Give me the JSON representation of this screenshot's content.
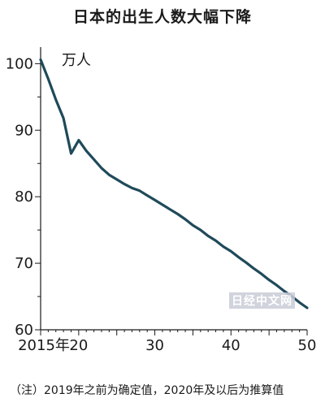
{
  "title": "日本的出生人数大幅下降",
  "footnote": "（注）2019年之前为确定值，2020年及以后为推算值",
  "watermark": "日经中文网",
  "chart_data": {
    "type": "line",
    "title": "日本的出生人数大幅下降",
    "ylabel": "万人",
    "xlabel": "",
    "xlim": [
      2015,
      2050
    ],
    "ylim": [
      60,
      102
    ],
    "x_tick_labels": [
      {
        "x": 2015,
        "label": "2015年"
      },
      {
        "x": 2020,
        "label": "20"
      },
      {
        "x": 2030,
        "label": "30"
      },
      {
        "x": 2040,
        "label": "40"
      },
      {
        "x": 2050,
        "label": "50"
      }
    ],
    "y_ticks": [
      60,
      70,
      80,
      90,
      100
    ],
    "grid": false,
    "line_color": "#1f4a5a",
    "series": [
      {
        "x": [
          2015,
          2016,
          2017,
          2018,
          2019,
          2020,
          2021,
          2022,
          2023,
          2024,
          2025,
          2026,
          2027,
          2028,
          2029,
          2030,
          2031,
          2032,
          2033,
          2034,
          2035,
          2036,
          2037,
          2038,
          2039,
          2040,
          2041,
          2042,
          2043,
          2044,
          2045,
          2046,
          2047,
          2048,
          2049,
          2050
        ],
        "values": [
          100.6,
          97.7,
          94.6,
          91.8,
          86.5,
          88.5,
          86.9,
          85.6,
          84.3,
          83.3,
          82.6,
          81.9,
          81.3,
          80.9,
          80.2,
          79.5,
          78.8,
          78.1,
          77.4,
          76.6,
          75.7,
          75.0,
          74.1,
          73.4,
          72.5,
          71.8,
          70.9,
          70.1,
          69.2,
          68.4,
          67.5,
          66.7,
          65.8,
          65.0,
          64.1,
          63.3
        ]
      }
    ]
  }
}
